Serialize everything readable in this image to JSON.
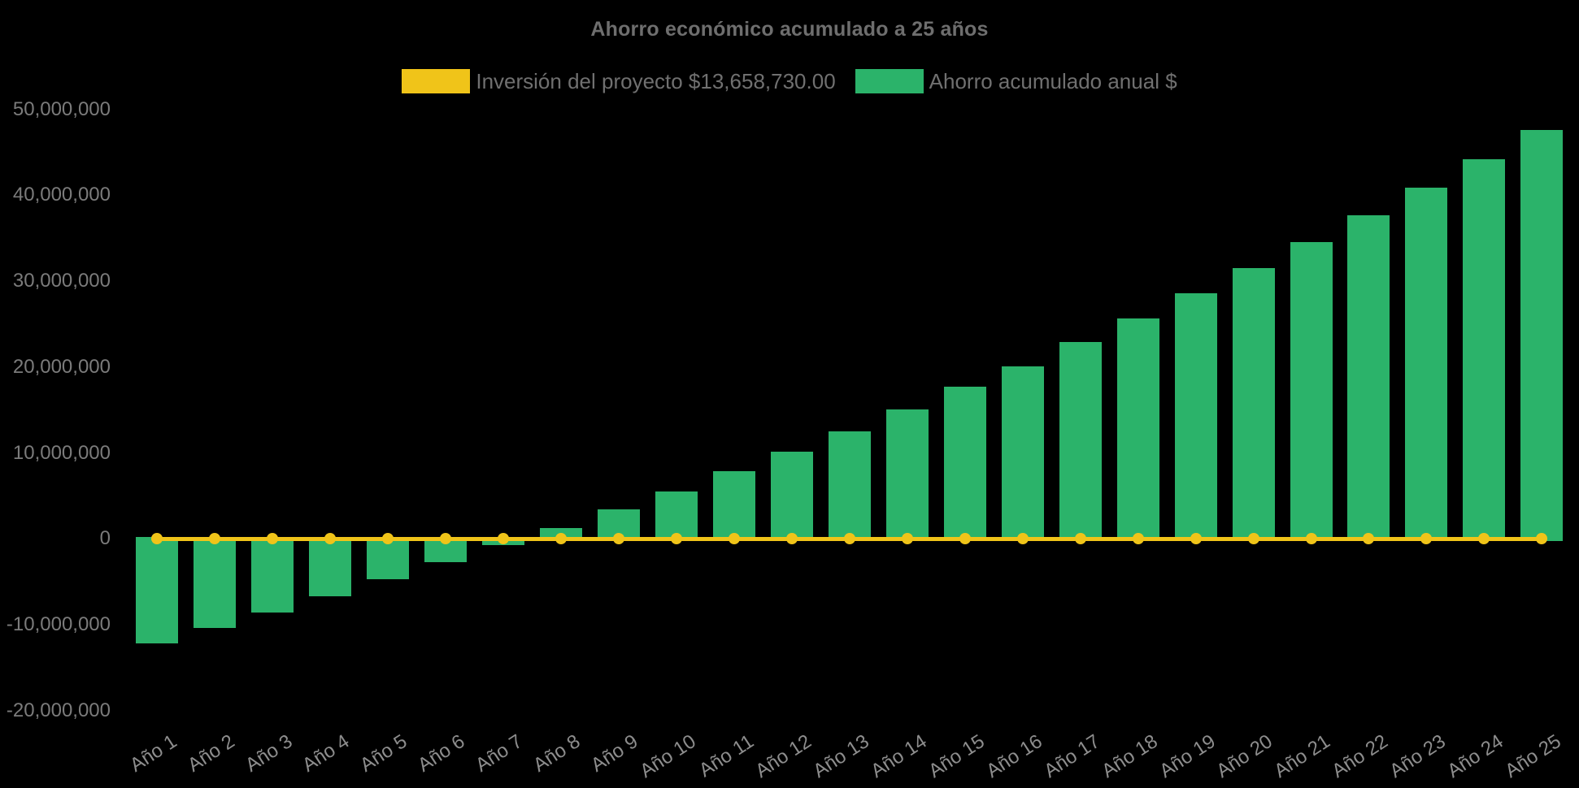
{
  "title": "Ahorro económico acumulado a 25 años",
  "legend": {
    "items": [
      {
        "label": "Inversión del proyecto $13,658,730.00",
        "color": "#f0c419",
        "series_type": "line"
      },
      {
        "label": "Ahorro acumulado anual $",
        "color": "#2bb36a",
        "series_type": "bar"
      }
    ]
  },
  "colors": {
    "background": "#000000",
    "bar_green": "#2bb36a",
    "line_gold": "#f0c419",
    "title_text": "#6e6e6e",
    "legend_text": "#707070",
    "y_tick_text": "#7b7b7b",
    "x_tick_text": "#8d8d8d"
  },
  "chart_data": {
    "type": "bar",
    "title": "Ahorro económico acumulado a 25 años",
    "xlabel": "",
    "ylabel": "",
    "categories": [
      "Año 1",
      "Año 2",
      "Año 3",
      "Año 4",
      "Año 5",
      "Año 6",
      "Año 7",
      "Año 8",
      "Año 9",
      "Año 10",
      "Año 11",
      "Año 12",
      "Año 13",
      "Año 14",
      "Año 15",
      "Año 16",
      "Año 17",
      "Año 18",
      "Año 19",
      "Año 20",
      "Año 21",
      "Año 22",
      "Año 23",
      "Año 24",
      "Año 25"
    ],
    "series": [
      {
        "name": "Ahorro acumulado anual $",
        "type": "bar",
        "color": "#2bb36a",
        "values": [
          -12150000,
          -10350000,
          -8550000,
          -6650000,
          -4700000,
          -2750000,
          -750000,
          1250000,
          3400000,
          5500000,
          7900000,
          10150000,
          12550000,
          15100000,
          17750000,
          20100000,
          22950000,
          25700000,
          28600000,
          31500000,
          34500000,
          37650000,
          40900000,
          44200000,
          47600000
        ]
      },
      {
        "name": "Inversión del proyecto $13,658,730.00",
        "type": "line",
        "color": "#f0c419",
        "point_style": "circle",
        "values": [
          0,
          0,
          0,
          0,
          0,
          0,
          0,
          0,
          0,
          0,
          0,
          0,
          0,
          0,
          0,
          0,
          0,
          0,
          0,
          0,
          0,
          0,
          0,
          0,
          0
        ]
      }
    ],
    "y_axis": {
      "min": -20000000,
      "max": 50000000,
      "tick_step": 10000000,
      "tick_labels": [
        "50,000,000",
        "40,000,000",
        "30,000,000",
        "20,000,000",
        "10,000,000",
        "0",
        "-10,000,000",
        "-20,000,000"
      ]
    },
    "x_axis": {
      "label_rotation_deg": -33
    },
    "legend_position": "top",
    "grid": false,
    "background": "#000000"
  }
}
